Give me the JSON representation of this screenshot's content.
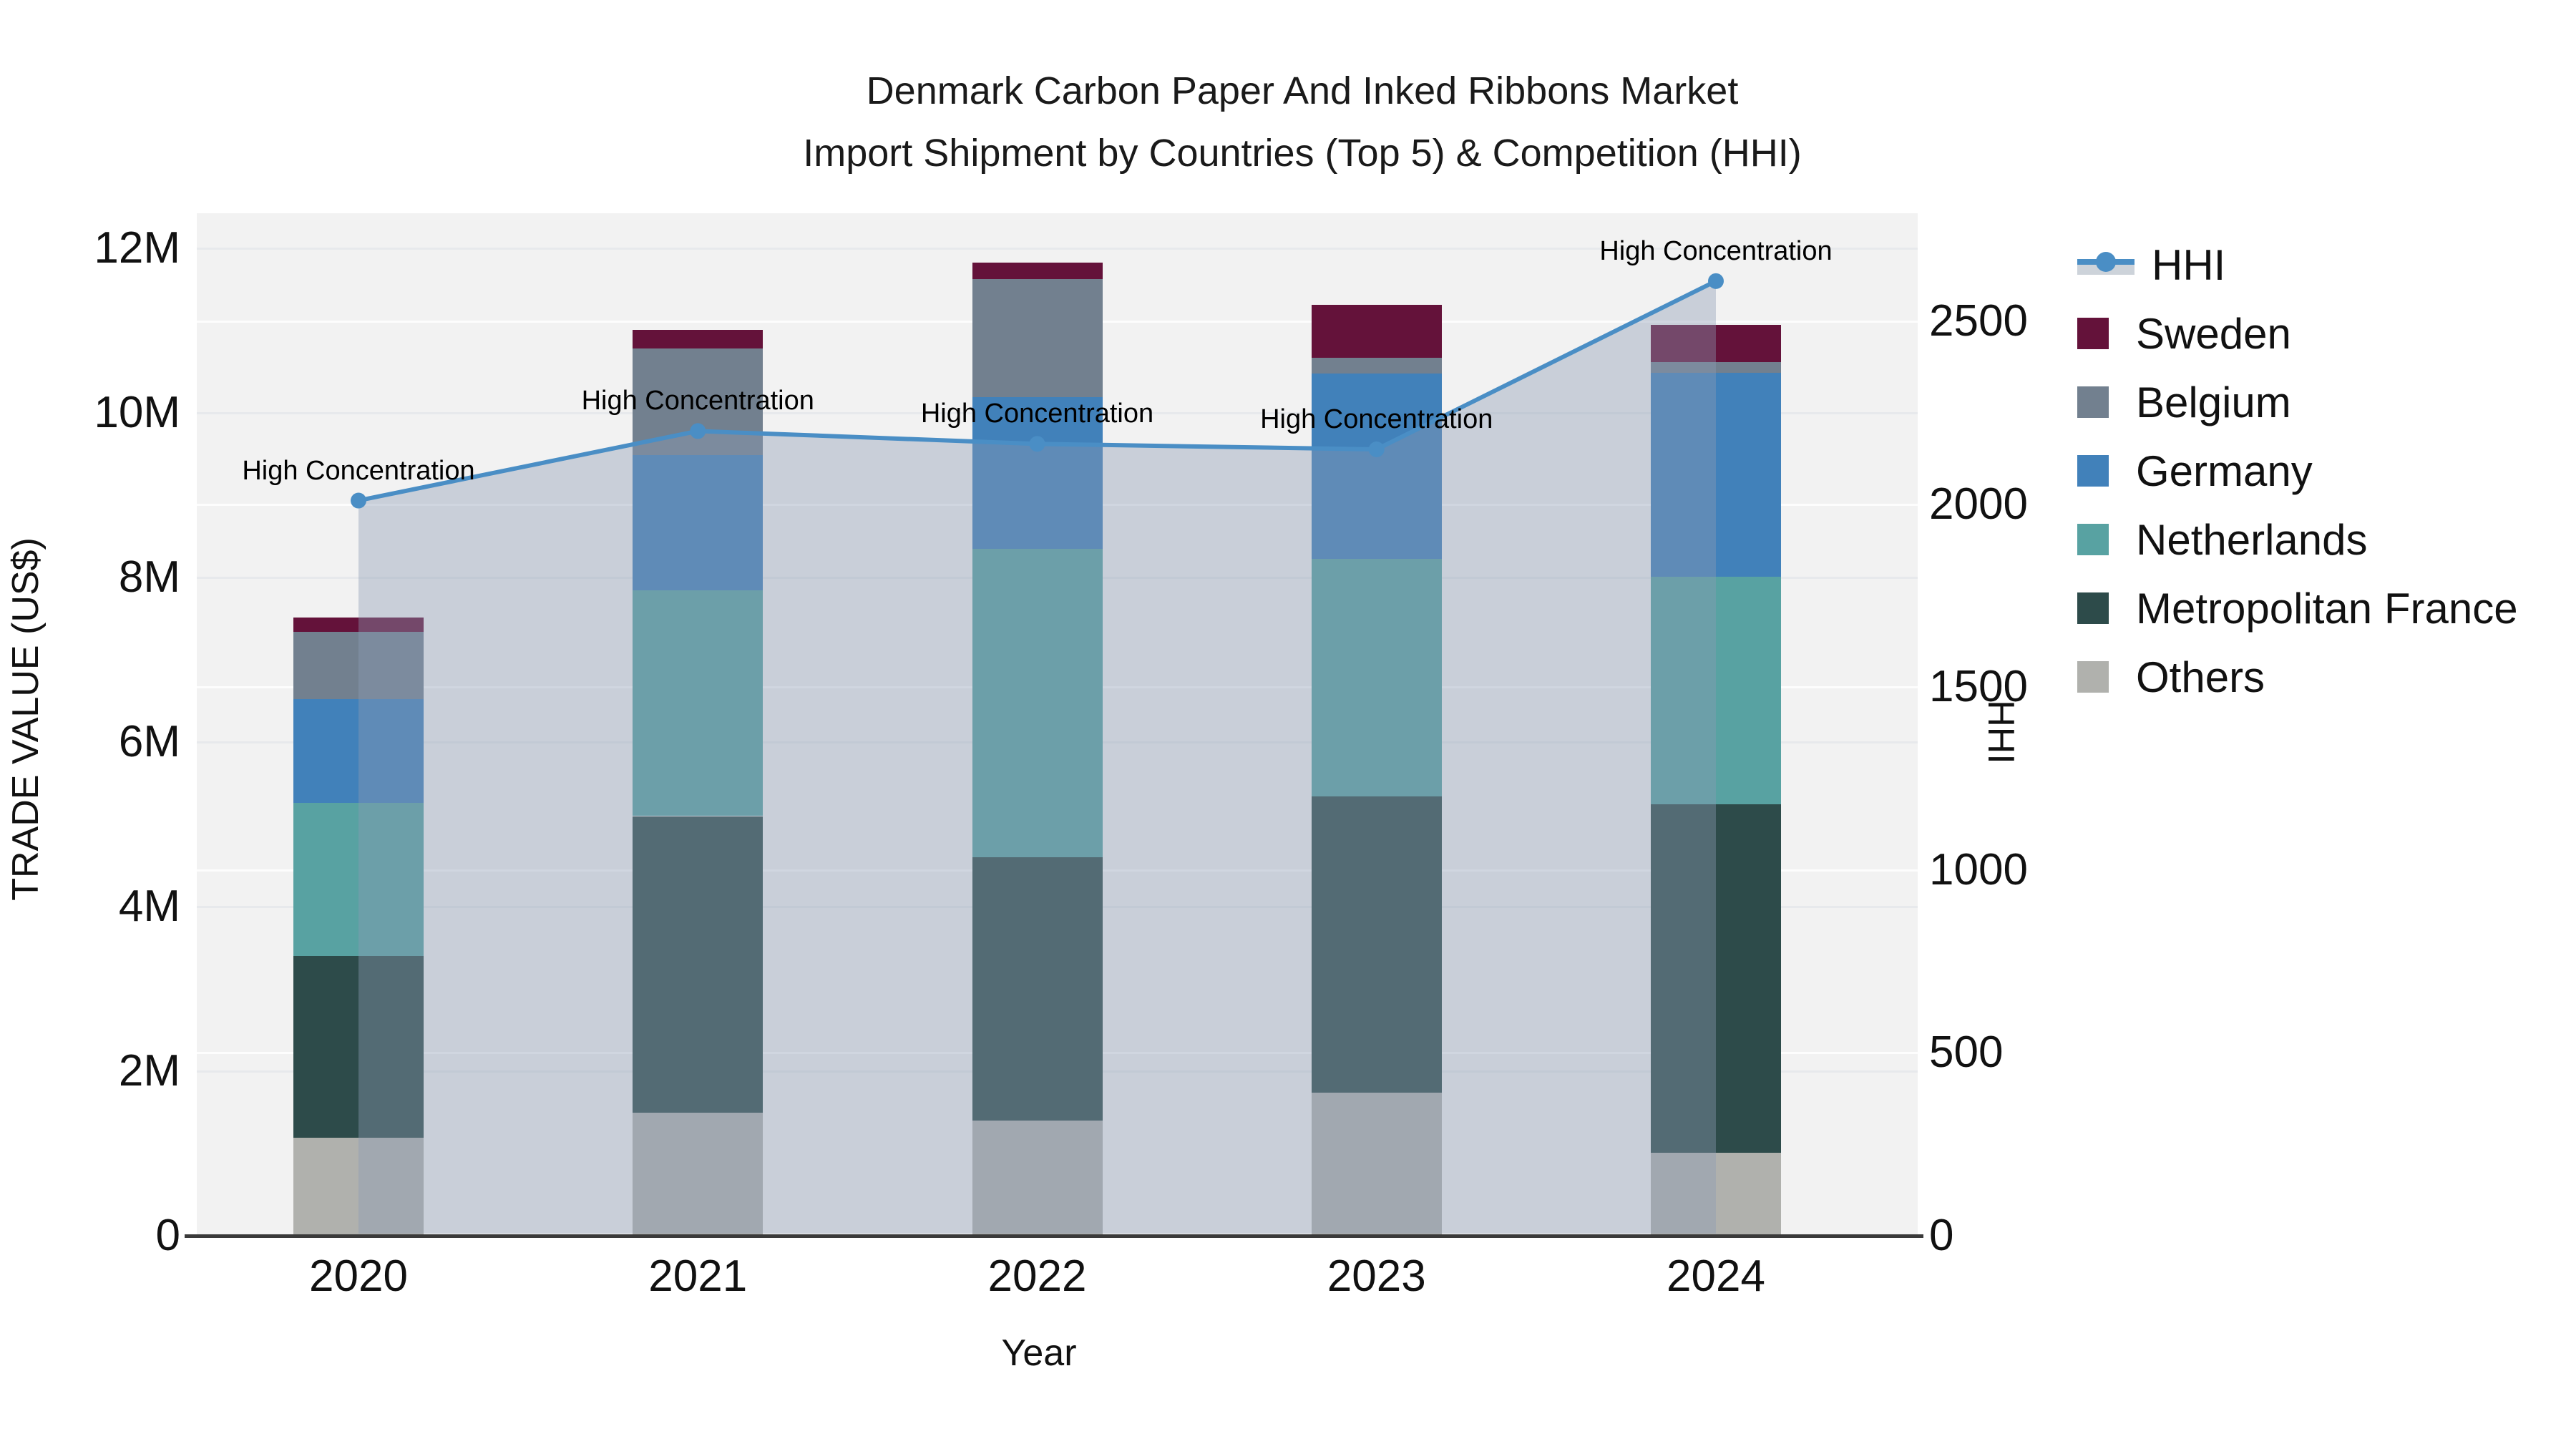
{
  "title": {
    "line1": "Denmark Carbon Paper And Inked Ribbons Market",
    "line2": "Import Shipment by Countries (Top 5) & Competition (HHI)"
  },
  "axes": {
    "x_label": "Year",
    "y_left_label": "TRADE VALUE (US$)",
    "y_right_label": "HHI"
  },
  "legend": {
    "position": "right",
    "items": [
      {
        "label": "HHI",
        "swatch": "line-marker",
        "color": "#4a8ec5"
      },
      {
        "label": "Sweden",
        "swatch": "square",
        "color": "#64123a"
      },
      {
        "label": "Belgium",
        "swatch": "square",
        "color": "#72808f"
      },
      {
        "label": "Germany",
        "swatch": "square",
        "color": "#4181ba"
      },
      {
        "label": "Netherlands",
        "swatch": "square",
        "color": "#58a2a2"
      },
      {
        "label": "Metropolitan France",
        "swatch": "square",
        "color": "#2d4b4a"
      },
      {
        "label": "Others",
        "swatch": "square",
        "color": "#b0b1ad"
      }
    ]
  },
  "chart_data": {
    "type": "combo: stacked bar (left axis) + line with area fill (right axis)",
    "title": "Denmark Carbon Paper And Inked Ribbons Market Import Shipment by Countries (Top 5) & Competition (HHI)",
    "categories": [
      "2020",
      "2021",
      "2022",
      "2023",
      "2024"
    ],
    "bar_value_unit": "million US$",
    "series": [
      {
        "name": "Others",
        "color": "#b0b1ad",
        "values": [
          1.19,
          1.5,
          1.4,
          1.74,
          1.01
        ]
      },
      {
        "name": "Metropolitan France",
        "color": "#2d4b4a",
        "values": [
          2.21,
          3.6,
          3.2,
          3.6,
          4.23
        ]
      },
      {
        "name": "Netherlands",
        "color": "#58a2a2",
        "values": [
          1.86,
          2.74,
          3.75,
          2.89,
          2.77
        ]
      },
      {
        "name": "Germany",
        "color": "#4181ba",
        "values": [
          1.26,
          1.65,
          1.84,
          2.25,
          2.48
        ]
      },
      {
        "name": "Belgium",
        "color": "#72808f",
        "values": [
          0.82,
          1.29,
          1.44,
          0.19,
          0.13
        ]
      },
      {
        "name": "Sweden",
        "color": "#64123a",
        "values": [
          0.17,
          0.23,
          0.2,
          0.64,
          0.45
        ]
      }
    ],
    "bar_totals": [
      7.51,
      11.01,
      11.83,
      11.31,
      11.07
    ],
    "line_series": {
      "name": "HHI",
      "color": "#4a8ec5",
      "area_fill": "rgba(140,156,180,0.40)",
      "values": [
        2010,
        2200,
        2165,
        2150,
        2610
      ]
    },
    "annotations": [
      {
        "category": "2020",
        "text": "High Concentration"
      },
      {
        "category": "2021",
        "text": "High Concentration"
      },
      {
        "category": "2022",
        "text": "High Concentration"
      },
      {
        "category": "2023",
        "text": "High Concentration"
      },
      {
        "category": "2024",
        "text": "High Concentration"
      }
    ],
    "y_left": {
      "label": "TRADE VALUE (US$)",
      "tick_labels": [
        "0",
        "2M",
        "4M",
        "6M",
        "8M",
        "10M",
        "12M"
      ],
      "tick_values": [
        0,
        2,
        4,
        6,
        8,
        10,
        12
      ],
      "range": [
        0,
        12.43
      ],
      "grid": true
    },
    "y_right": {
      "label": "HHI",
      "tick_labels": [
        "0",
        "500",
        "1000",
        "1500",
        "2000",
        "2500"
      ],
      "tick_values": [
        0,
        500,
        1000,
        1500,
        2000,
        2500
      ],
      "range": [
        0,
        2796
      ],
      "grid": true
    },
    "x": {
      "label": "Year",
      "grid": false
    },
    "plot_background": "#f2f2f2"
  }
}
